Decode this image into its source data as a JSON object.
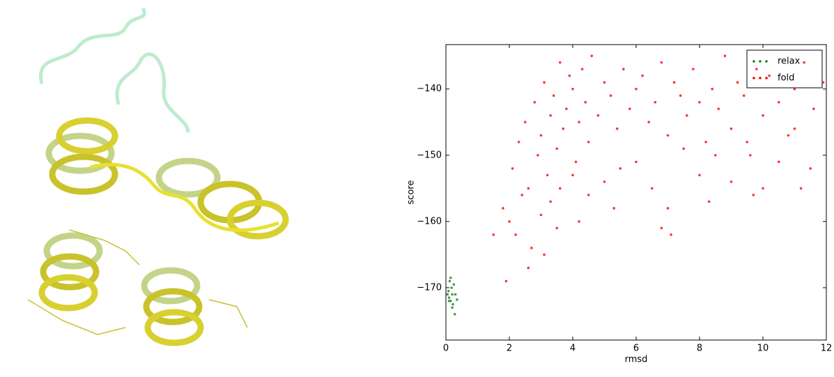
{
  "chart_data": {
    "type": "scatter",
    "xlabel": "rmsd",
    "ylabel": "score",
    "xlim": [
      0,
      12
    ],
    "ylim": [
      -177.9,
      -133.3
    ],
    "xticks": [
      0,
      2,
      4,
      6,
      8,
      10,
      12
    ],
    "yticks": [
      {
        "value": -170,
        "label": "−170"
      },
      {
        "value": -160,
        "label": "−160"
      },
      {
        "value": -150,
        "label": "−150"
      },
      {
        "value": -140,
        "label": "−140"
      }
    ],
    "legend": "upper right",
    "series": [
      {
        "name": "relax",
        "color": "#1a7f1a",
        "x": [
          0.05,
          0.08,
          0.1,
          0.12,
          0.15,
          0.18,
          0.2,
          0.22,
          0.25,
          0.3,
          0.35,
          0.15,
          0.2,
          0.28,
          0.1
        ],
        "values": [
          -171,
          -170.5,
          -171.5,
          -169,
          -172,
          -170,
          -171,
          -172.5,
          -169.5,
          -171,
          -171.8,
          -168.5,
          -173,
          -174,
          -172
        ]
      },
      {
        "name": "fold",
        "color": "#ff0000",
        "x": [
          2.1,
          2.3,
          2.5,
          2.6,
          2.8,
          2.9,
          3.0,
          3.1,
          3.2,
          3.3,
          3.4,
          3.5,
          3.6,
          3.7,
          3.8,
          3.9,
          4.0,
          4.1,
          4.2,
          4.3,
          4.4,
          4.5,
          4.6,
          4.8,
          5.0,
          5.2,
          5.4,
          5.6,
          5.8,
          6.0,
          6.2,
          6.4,
          6.6,
          6.8,
          7.0,
          7.2,
          7.4,
          7.6,
          7.8,
          8.0,
          8.2,
          8.4,
          8.6,
          8.8,
          9.0,
          9.2,
          9.4,
          9.6,
          9.8,
          10.0,
          10.2,
          10.5,
          10.8,
          11.0,
          11.3,
          11.6,
          11.9,
          1.8,
          2.0,
          2.2,
          2.4,
          2.7,
          3.0,
          3.3,
          3.6,
          4.0,
          4.5,
          5.0,
          5.5,
          6.0,
          6.5,
          7.0,
          7.5,
          8.0,
          8.5,
          9.0,
          9.5,
          10.0,
          10.5,
          11.0,
          11.5,
          1.5,
          1.9,
          2.6,
          3.1,
          3.5,
          4.2,
          5.3,
          6.8,
          7.1,
          8.3,
          9.7,
          11.2
        ],
        "values": [
          -152,
          -148,
          -145,
          -155,
          -142,
          -150,
          -147,
          -139,
          -153,
          -144,
          -141,
          -149,
          -136,
          -146,
          -143,
          -138,
          -140,
          -151,
          -145,
          -137,
          -142,
          -148,
          -135,
          -144,
          -139,
          -141,
          -146,
          -137,
          -143,
          -140,
          -138,
          -145,
          -142,
          -136,
          -147,
          -139,
          -141,
          -144,
          -137,
          -142,
          -148,
          -140,
          -143,
          -135,
          -146,
          -139,
          -141,
          -150,
          -137,
          -144,
          -138,
          -142,
          -147,
          -140,
          -136,
          -143,
          -139,
          -158,
          -160,
          -162,
          -156,
          -164,
          -159,
          -157,
          -155,
          -153,
          -156,
          -154,
          -152,
          -151,
          -155,
          -158,
          -149,
          -153,
          -150,
          -154,
          -148,
          -155,
          -151,
          -146,
          -152,
          -162,
          -169,
          -167,
          -165,
          -161,
          -160,
          -158,
          -161,
          -162,
          -157,
          -156,
          -155
        ]
      }
    ]
  }
}
